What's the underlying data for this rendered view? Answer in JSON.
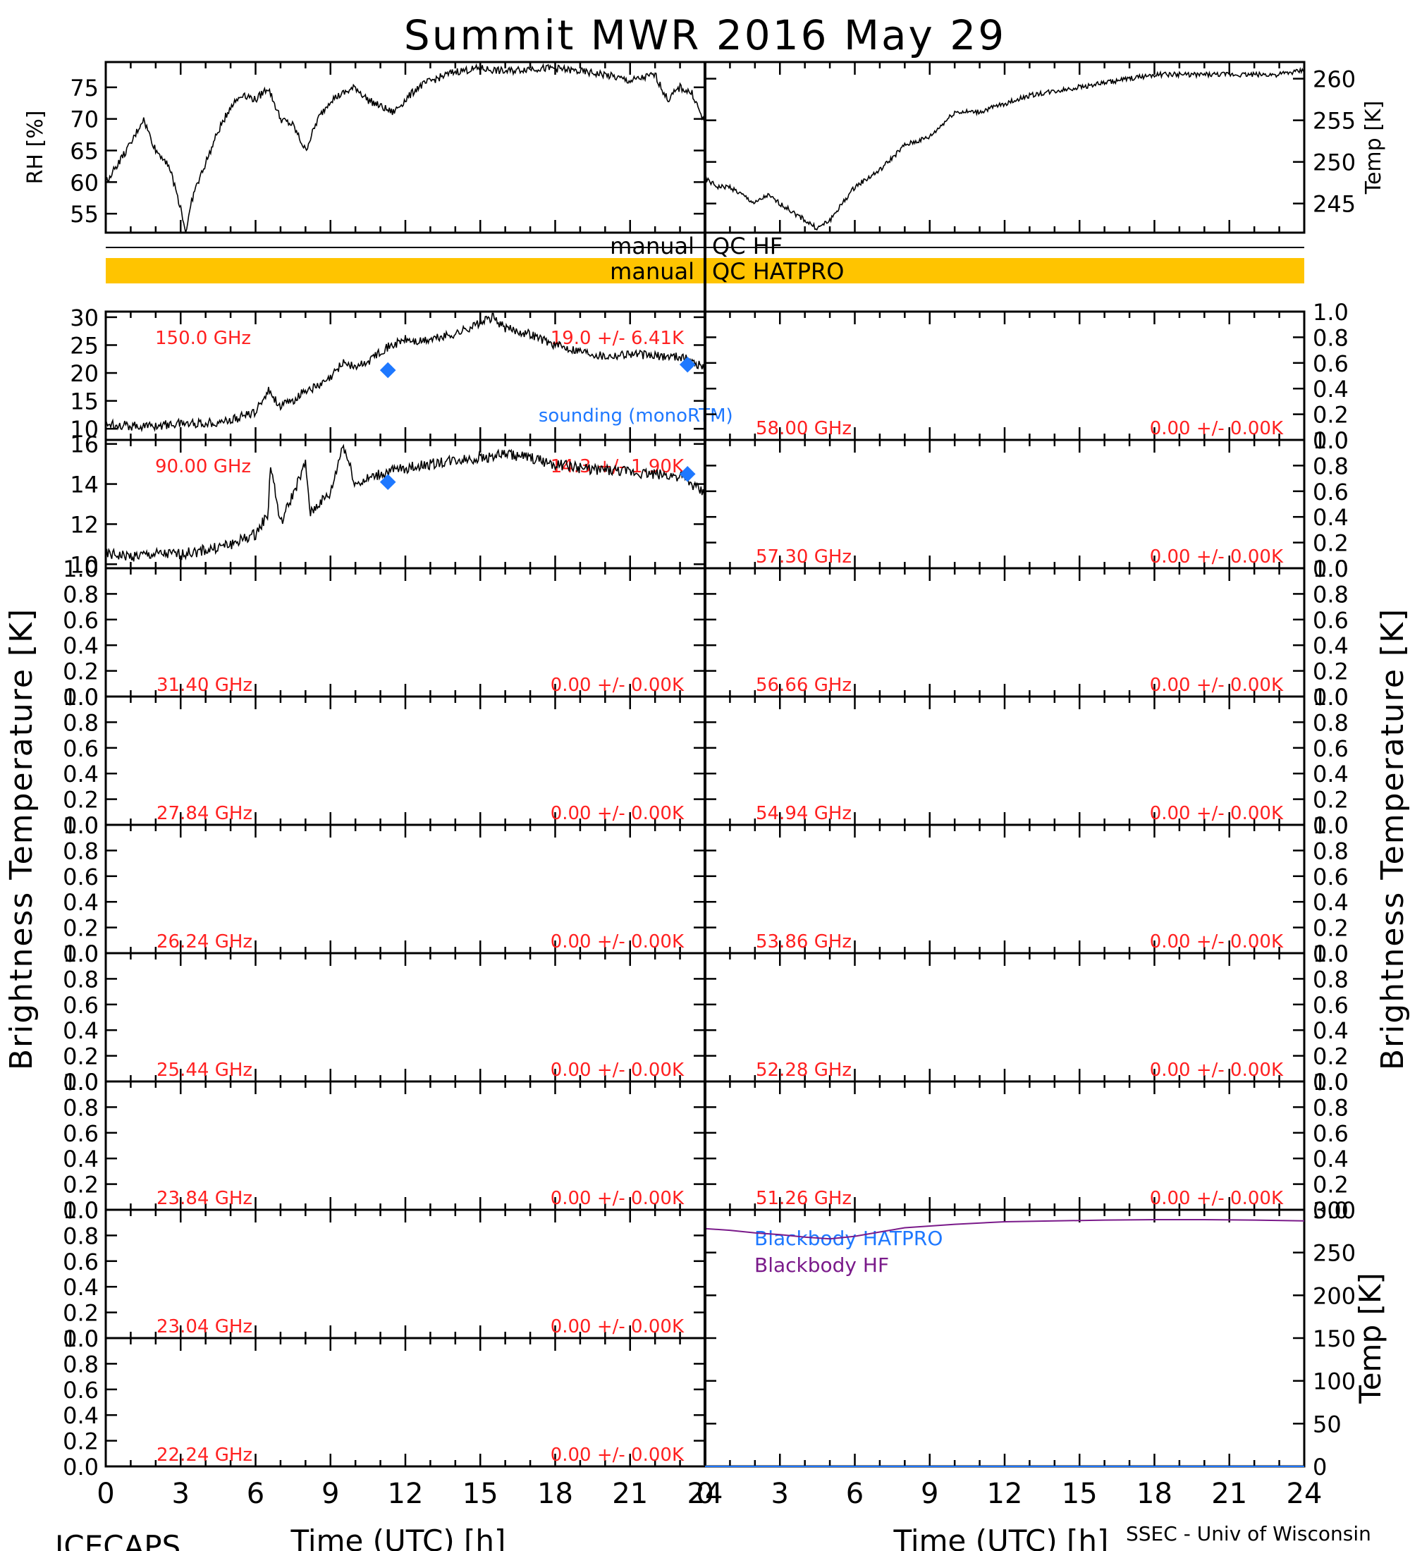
{
  "title": "Summit MWR 2016 May 29",
  "footer": {
    "left": "ICECAPS",
    "right": "SSEC - Univ of Wisconsin",
    "xlabel_left": "Time (UTC) [h]",
    "xlabel_right": "Time (UTC) [h]"
  },
  "side_labels": {
    "left": "Brightness Temperature [K]",
    "right": "Brightness Temperature [K]"
  },
  "qc": {
    "hf_left": "manual",
    "hf_right": "QC HF",
    "hatpro_left": "manual",
    "hatpro_right": "QC HATPRO",
    "hatpro_color": "#ffc400"
  },
  "colors": {
    "channel_label": "#ff2020",
    "sounding": "#1e78ff",
    "bb_hatpro": "#1e78ff",
    "bb_hf": "#7a1a8a"
  },
  "x_ticks": [
    "0",
    "3",
    "6",
    "9",
    "12",
    "15",
    "18",
    "21",
    "24"
  ],
  "chart_data": [
    {
      "id": "rh",
      "type": "line",
      "ylabel": "RH [%]",
      "xlim": [
        0,
        24
      ],
      "ylim": [
        52,
        79
      ],
      "yticks": [
        "55",
        "60",
        "65",
        "70",
        "75"
      ],
      "x": [
        0,
        0.5,
        1,
        1.5,
        2,
        2.5,
        3,
        3.2,
        3.5,
        4,
        4.5,
        5,
        5.5,
        6,
        6.5,
        7,
        7.5,
        8,
        8.5,
        9,
        9.5,
        10,
        10.5,
        11,
        11.5,
        12,
        12.5,
        13,
        14,
        15,
        16,
        17,
        18,
        19,
        20,
        21,
        22,
        22.5,
        23,
        23.5,
        24
      ],
      "values": [
        60,
        63,
        66,
        70,
        65,
        63,
        56,
        52,
        58,
        63,
        68,
        72,
        74,
        73,
        75,
        70,
        69,
        65,
        70,
        73,
        74,
        75,
        73,
        72,
        71,
        73,
        75,
        76,
        77.5,
        78,
        77.5,
        78,
        78,
        77.5,
        77,
        76,
        77,
        73,
        75,
        74,
        69
      ]
    },
    {
      "id": "temp",
      "type": "line",
      "ylabel": "Temp [K]",
      "xlim": [
        0,
        24
      ],
      "ylim": [
        241.5,
        262
      ],
      "yticks": [
        "245",
        "250",
        "255",
        "260"
      ],
      "x": [
        0,
        0.5,
        1,
        1.5,
        2,
        2.5,
        3,
        3.5,
        4,
        4.5,
        5,
        5.5,
        6,
        7,
        8,
        9,
        10,
        11,
        12,
        13,
        14,
        15,
        16,
        17,
        18,
        19,
        20,
        21,
        22,
        23,
        24
      ],
      "values": [
        248,
        247,
        247,
        246,
        245,
        246,
        245,
        244,
        243,
        242,
        243,
        245,
        247,
        249,
        252,
        253,
        256,
        256,
        257,
        258,
        258.5,
        259,
        259.5,
        260,
        260.5,
        260.5,
        260.5,
        260.5,
        260.5,
        260.5,
        261
      ]
    },
    {
      "id": "ch150",
      "type": "line",
      "channel": "150.0 GHz",
      "stat": "19.0 +/- 6.41K",
      "xlim": [
        0,
        24
      ],
      "ylim": [
        8,
        31
      ],
      "yticks": [
        "10",
        "15",
        "20",
        "25",
        "30"
      ],
      "x": [
        0,
        1,
        2,
        3,
        4,
        5,
        6,
        6.5,
        7,
        7.5,
        8,
        8.5,
        9,
        9.5,
        10,
        10.5,
        11,
        11.5,
        12,
        12.5,
        13,
        14,
        15,
        15.5,
        16,
        17,
        18,
        19,
        20,
        21,
        22,
        23,
        24
      ],
      "values": [
        11,
        10.5,
        10.5,
        11,
        11,
        11.5,
        13,
        17,
        14,
        15,
        17,
        17.5,
        19,
        22,
        21,
        22,
        24,
        25,
        26,
        25.5,
        26,
        27,
        29,
        30,
        28,
        27,
        25,
        24,
        23,
        23.5,
        23,
        23,
        21
      ],
      "sounding": {
        "label": "sounding (monoRTM)",
        "x": [
          11.3,
          23.3
        ],
        "values": [
          20.5,
          21.5
        ]
      }
    },
    {
      "id": "ch58",
      "type": "line",
      "channel": "58.00 GHz",
      "stat": "0.00 +/- 0.00K",
      "xlim": [
        0,
        24
      ],
      "ylim": [
        0,
        1
      ],
      "yticks": [
        "0.0",
        "0.2",
        "0.4",
        "0.6",
        "0.8",
        "1.0"
      ],
      "x": [],
      "values": []
    },
    {
      "id": "ch90",
      "type": "line",
      "channel": "90.00 GHz",
      "stat": "14.3 +/- 1.90K",
      "xlim": [
        0,
        24
      ],
      "ylim": [
        9.8,
        16.2
      ],
      "yticks": [
        "10",
        "12",
        "14",
        "16"
      ],
      "x": [
        0,
        1,
        2,
        3,
        4,
        5,
        6,
        6.5,
        6.6,
        7,
        7.5,
        8,
        8.2,
        8.5,
        9,
        9.3,
        9.5,
        10,
        11,
        12,
        13,
        14,
        15,
        16,
        17,
        18,
        19,
        20,
        21,
        22,
        23,
        24
      ],
      "values": [
        10.5,
        10.4,
        10.5,
        10.5,
        10.7,
        11,
        11.5,
        12.5,
        15,
        12,
        13.5,
        15,
        12.5,
        13,
        13.5,
        15,
        16,
        14,
        14.5,
        14.8,
        15,
        15.2,
        15.3,
        15.5,
        15.3,
        15,
        14.8,
        14.7,
        14.6,
        14.5,
        14.4,
        13.5
      ],
      "sounding": {
        "label": "",
        "x": [
          11.3,
          23.3
        ],
        "values": [
          14.1,
          14.5
        ]
      }
    },
    {
      "id": "ch5730",
      "type": "line",
      "channel": "57.30 GHz",
      "stat": "0.00 +/- 0.00K",
      "xlim": [
        0,
        24
      ],
      "ylim": [
        0,
        1
      ],
      "yticks": [
        "0.0",
        "0.2",
        "0.4",
        "0.6",
        "0.8",
        "1.0"
      ],
      "x": [],
      "values": []
    },
    {
      "id": "ch3140",
      "type": "line",
      "channel": "31.40 GHz",
      "stat": "0.00 +/- 0.00K",
      "xlim": [
        0,
        24
      ],
      "ylim": [
        0,
        1
      ],
      "yticks": [
        "0.0",
        "0.2",
        "0.4",
        "0.6",
        "0.8",
        "1.0"
      ],
      "x": [],
      "values": []
    },
    {
      "id": "ch5666",
      "type": "line",
      "channel": "56.66 GHz",
      "stat": "0.00 +/- 0.00K",
      "xlim": [
        0,
        24
      ],
      "ylim": [
        0,
        1
      ],
      "yticks": [
        "0.0",
        "0.2",
        "0.4",
        "0.6",
        "0.8",
        "1.0"
      ],
      "x": [],
      "values": []
    },
    {
      "id": "ch2784",
      "type": "line",
      "channel": "27.84 GHz",
      "stat": "0.00 +/- 0.00K",
      "xlim": [
        0,
        24
      ],
      "ylim": [
        0,
        1
      ],
      "yticks": [
        "0.0",
        "0.2",
        "0.4",
        "0.6",
        "0.8",
        "1.0"
      ],
      "x": [],
      "values": []
    },
    {
      "id": "ch5494",
      "type": "line",
      "channel": "54.94 GHz",
      "stat": "0.00 +/- 0.00K",
      "xlim": [
        0,
        24
      ],
      "ylim": [
        0,
        1
      ],
      "yticks": [
        "0.0",
        "0.2",
        "0.4",
        "0.6",
        "0.8",
        "1.0"
      ],
      "x": [],
      "values": []
    },
    {
      "id": "ch2624",
      "type": "line",
      "channel": "26.24 GHz",
      "stat": "0.00 +/- 0.00K",
      "xlim": [
        0,
        24
      ],
      "ylim": [
        0,
        1
      ],
      "yticks": [
        "0.0",
        "0.2",
        "0.4",
        "0.6",
        "0.8",
        "1.0"
      ],
      "x": [],
      "values": []
    },
    {
      "id": "ch5386",
      "type": "line",
      "channel": "53.86 GHz",
      "stat": "0.00 +/- 0.00K",
      "xlim": [
        0,
        24
      ],
      "ylim": [
        0,
        1
      ],
      "yticks": [
        "0.0",
        "0.2",
        "0.4",
        "0.6",
        "0.8",
        "1.0"
      ],
      "x": [],
      "values": []
    },
    {
      "id": "ch2544",
      "type": "line",
      "channel": "25.44 GHz",
      "stat": "0.00 +/- 0.00K",
      "xlim": [
        0,
        24
      ],
      "ylim": [
        0,
        1
      ],
      "yticks": [
        "0.0",
        "0.2",
        "0.4",
        "0.6",
        "0.8",
        "1.0"
      ],
      "x": [],
      "values": []
    },
    {
      "id": "ch5228",
      "type": "line",
      "channel": "52.28 GHz",
      "stat": "0.00 +/- 0.00K",
      "xlim": [
        0,
        24
      ],
      "ylim": [
        0,
        1
      ],
      "yticks": [
        "0.0",
        "0.2",
        "0.4",
        "0.6",
        "0.8",
        "1.0"
      ],
      "x": [],
      "values": []
    },
    {
      "id": "ch2384",
      "type": "line",
      "channel": "23.84 GHz",
      "stat": "0.00 +/- 0.00K",
      "xlim": [
        0,
        24
      ],
      "ylim": [
        0,
        1
      ],
      "yticks": [
        "0.0",
        "0.2",
        "0.4",
        "0.6",
        "0.8",
        "1.0"
      ],
      "x": [],
      "values": []
    },
    {
      "id": "ch5126",
      "type": "line",
      "channel": "51.26 GHz",
      "stat": "0.00 +/- 0.00K",
      "xlim": [
        0,
        24
      ],
      "ylim": [
        0,
        1
      ],
      "yticks": [
        "0.0",
        "0.2",
        "0.4",
        "0.6",
        "0.8",
        "1.0"
      ],
      "x": [],
      "values": []
    },
    {
      "id": "ch2304",
      "type": "line",
      "channel": "23.04 GHz",
      "stat": "0.00 +/- 0.00K",
      "xlim": [
        0,
        24
      ],
      "ylim": [
        0,
        1
      ],
      "yticks": [
        "0.0",
        "0.2",
        "0.4",
        "0.6",
        "0.8",
        "1.0"
      ],
      "x": [],
      "values": []
    },
    {
      "id": "bb",
      "type": "line",
      "ylabel": "Temp [K]",
      "xlim": [
        0,
        24
      ],
      "ylim": [
        0,
        300
      ],
      "yticks": [
        "0",
        "50",
        "100",
        "150",
        "200",
        "250",
        "300"
      ],
      "series": [
        {
          "name": "Blackbody HATPRO",
          "x": [
            0,
            24
          ],
          "values": [
            0,
            0
          ]
        },
        {
          "name": "Blackbody HF",
          "x": [
            0,
            1,
            2,
            3,
            4,
            5,
            6,
            7,
            8,
            10,
            12,
            14,
            16,
            18,
            20,
            22,
            24
          ],
          "values": [
            278,
            276,
            273,
            271,
            268,
            266,
            269,
            274,
            279,
            283,
            286,
            287,
            288,
            288.5,
            288.5,
            288,
            287
          ]
        }
      ]
    },
    {
      "id": "ch2224",
      "type": "line",
      "channel": "22.24 GHz",
      "stat": "0.00 +/- 0.00K",
      "xlim": [
        0,
        24
      ],
      "ylim": [
        0,
        1
      ],
      "yticks": [
        "0.0",
        "0.2",
        "0.4",
        "0.6",
        "0.8",
        "1.0"
      ],
      "x": [],
      "values": []
    }
  ]
}
